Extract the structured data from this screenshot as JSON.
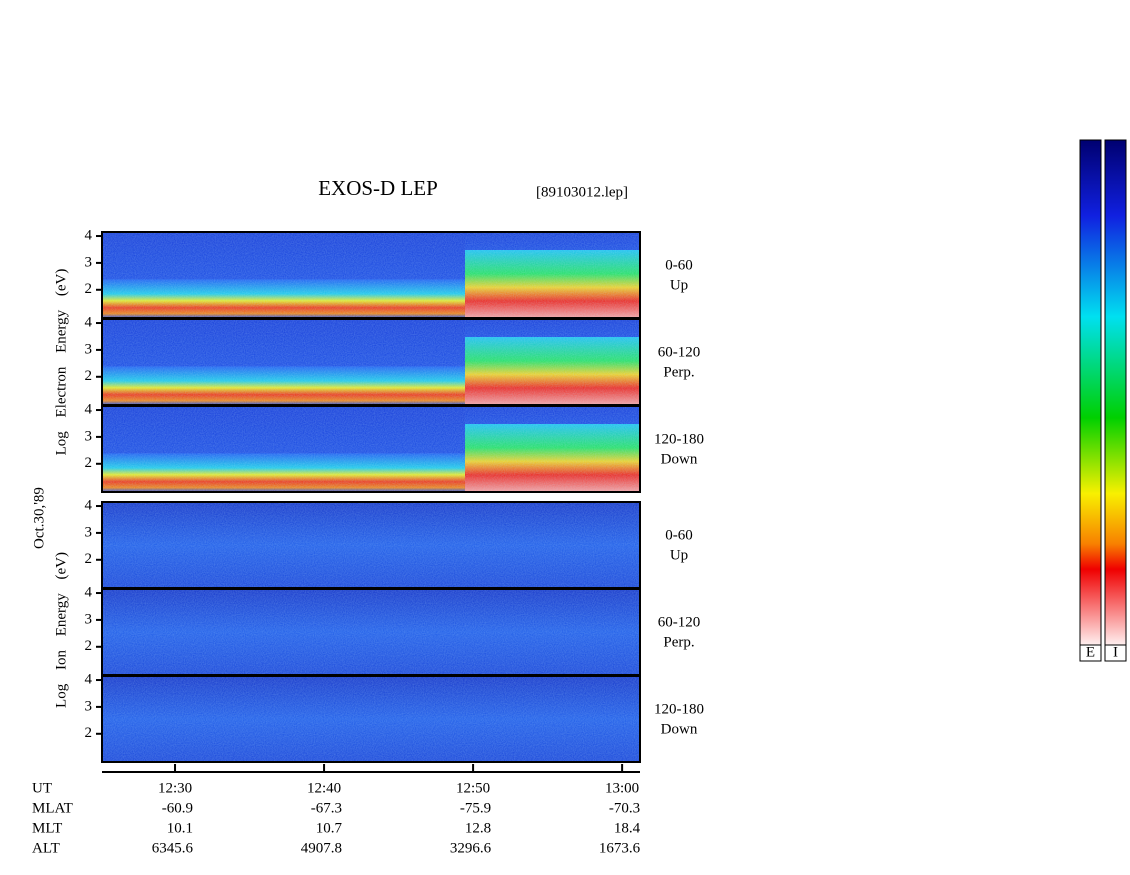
{
  "chart_data": {
    "type": "spectrogram",
    "title": "EXOS-D LEP",
    "file_label": "[89103012.lep]",
    "date_label": "Oct.30,'89",
    "groups": [
      {
        "ylabel": "Log Electron Energy (eV)"
      },
      {
        "ylabel": "Log Ion Energy (eV)"
      }
    ],
    "panels": [
      {
        "group": 0,
        "label": [
          "0-60",
          "Up"
        ]
      },
      {
        "group": 0,
        "label": [
          "60-120",
          "Perp."
        ]
      },
      {
        "group": 0,
        "label": [
          "120-180",
          "Down"
        ]
      },
      {
        "group": 1,
        "label": [
          "0-60",
          "Up"
        ]
      },
      {
        "group": 1,
        "label": [
          "60-120",
          "Perp."
        ]
      },
      {
        "group": 1,
        "label": [
          "120-180",
          "Down"
        ]
      }
    ],
    "ylim": [
      0.95,
      4.15
    ],
    "yticks": [
      2,
      3,
      4
    ],
    "xlim": [
      745.1,
      781.2
    ],
    "xticks": [
      {
        "value": 750,
        "label": "12:30"
      },
      {
        "value": 760,
        "label": "12:40"
      },
      {
        "value": 770,
        "label": "12:50"
      },
      {
        "value": 780,
        "label": "13:00"
      }
    ],
    "xlabel": "UT",
    "ephemeris": [
      {
        "label": "MLAT",
        "values": [
          -60.9,
          -67.3,
          -75.9,
          -70.3
        ]
      },
      {
        "label": "MLT",
        "values": [
          10.1,
          10.7,
          12.8,
          18.4
        ]
      },
      {
        "label": "ALT",
        "values": [
          6345.6,
          4907.8,
          3296.6,
          1673.6
        ]
      }
    ],
    "colorbars": [
      "E",
      "I"
    ]
  }
}
